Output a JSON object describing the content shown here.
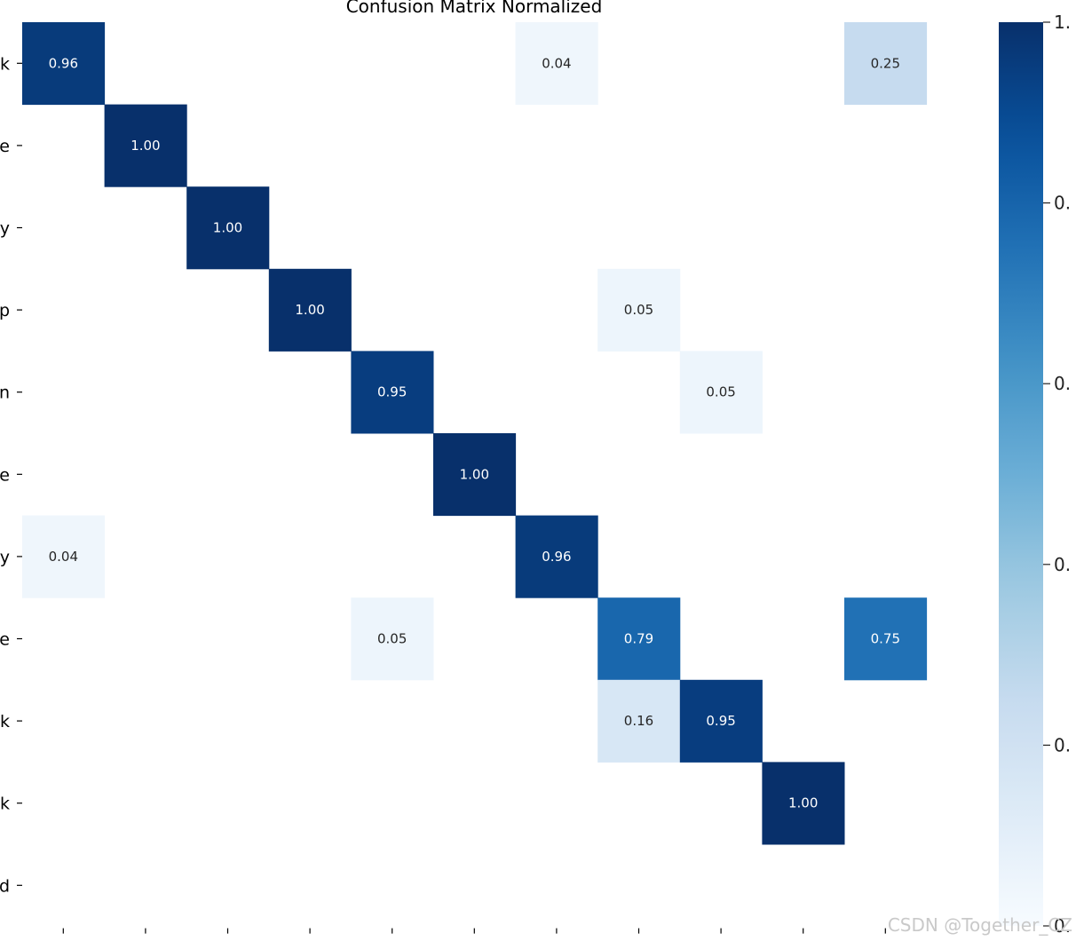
{
  "chart_data": {
    "type": "heatmap",
    "title": "Confusion Matrix Normalized",
    "y_tick_labels": [
      "k",
      "e",
      "y",
      "p",
      "n",
      "e",
      "y",
      "e",
      "k",
      "k",
      "d"
    ],
    "x_tick_labels": [
      "",
      "",
      "",
      "",
      "",
      "",
      "",
      "",
      "",
      "",
      ""
    ],
    "matrix": [
      [
        0.96,
        0,
        0,
        0,
        0,
        0,
        0.04,
        0,
        0,
        0,
        0.25
      ],
      [
        0,
        1.0,
        0,
        0,
        0,
        0,
        0,
        0,
        0,
        0,
        0
      ],
      [
        0,
        0,
        1.0,
        0,
        0,
        0,
        0,
        0,
        0,
        0,
        0
      ],
      [
        0,
        0,
        0,
        1.0,
        0,
        0,
        0,
        0.05,
        0,
        0,
        0
      ],
      [
        0,
        0,
        0,
        0,
        0.95,
        0,
        0,
        0,
        0.05,
        0,
        0
      ],
      [
        0,
        0,
        0,
        0,
        0,
        1.0,
        0,
        0,
        0,
        0,
        0
      ],
      [
        0.04,
        0,
        0,
        0,
        0,
        0,
        0.96,
        0,
        0,
        0,
        0
      ],
      [
        0,
        0,
        0,
        0,
        0.05,
        0,
        0,
        0.79,
        0,
        0,
        0.75
      ],
      [
        0,
        0,
        0,
        0,
        0,
        0,
        0,
        0.16,
        0.95,
        0,
        0
      ],
      [
        0,
        0,
        0,
        0,
        0,
        0,
        0,
        0,
        0,
        1.0,
        0
      ],
      [
        0,
        0,
        0,
        0,
        0,
        0,
        0,
        0,
        0,
        0,
        0
      ]
    ],
    "colormap": "Blues",
    "colorbar": {
      "range": [
        0,
        1
      ],
      "tick_labels": [
        "1.",
        "0.",
        "0.",
        "0.",
        "0.",
        "0."
      ]
    },
    "value_format": "0.00",
    "hide_zero_cells": true
  },
  "watermark": "CSDN @Together_CZ"
}
